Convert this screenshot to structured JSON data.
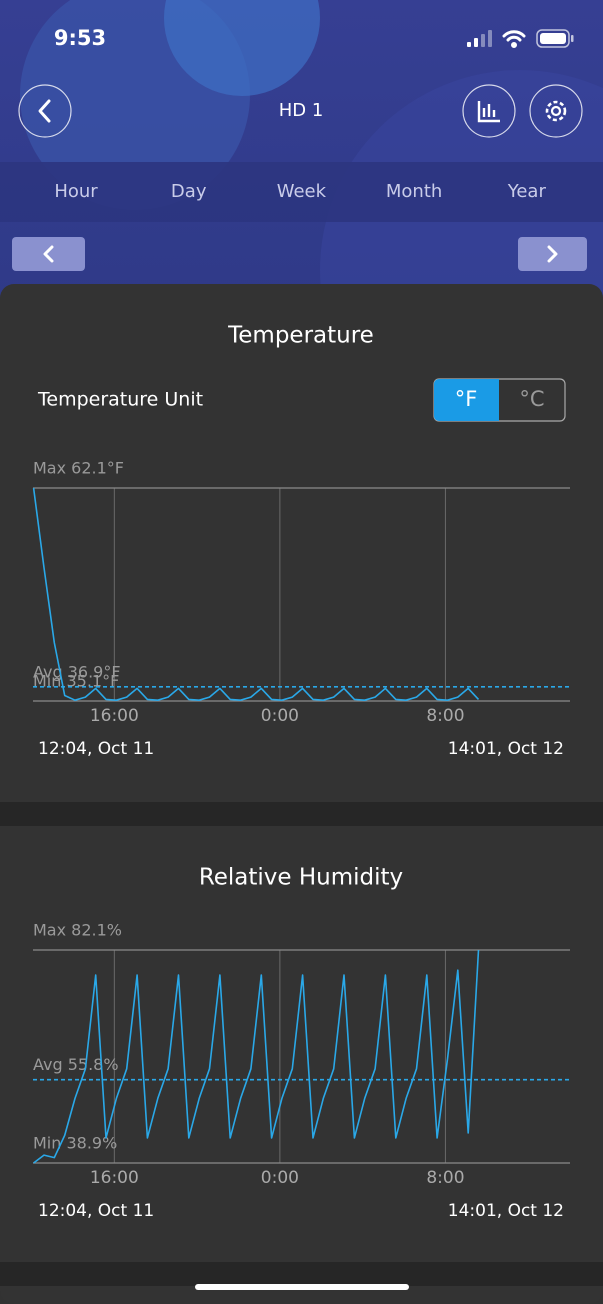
{
  "status_bar": {
    "time": "9:53"
  },
  "header": {
    "title": "HD 1"
  },
  "tabs": [
    "Hour",
    "Day",
    "Week",
    "Month",
    "Year"
  ],
  "unit_selector": {
    "label": "Temperature Unit",
    "options": [
      "°F",
      "°C"
    ],
    "selected": 0
  },
  "chart_data": [
    {
      "type": "line",
      "title": "Temperature",
      "color": "#2aa8e8",
      "xlim": [
        12.07,
        38.02
      ],
      "xticks": [
        {
          "value": 16,
          "label": "16:00"
        },
        {
          "value": 24,
          "label": "0:00"
        },
        {
          "value": 32,
          "label": "8:00"
        }
      ],
      "ylim": [
        35.1,
        62.1
      ],
      "yticks": [
        {
          "value": 35.1,
          "label": "Min 35.1°F"
        },
        {
          "value": 62.1,
          "label": "Max 62.1°F"
        }
      ],
      "avg_line": {
        "value": 36.9,
        "label": "Avg 36.9°F"
      },
      "start_label": "12:04,  Oct 11",
      "end_label": "14:01,  Oct 12",
      "x": [
        12.1,
        12.6,
        13.1,
        13.6,
        14.1,
        14.6,
        15.1,
        15.6,
        16.1,
        16.6,
        17.1,
        17.6,
        18.1,
        18.6,
        19.1,
        19.6,
        20.1,
        20.6,
        21.1,
        21.6,
        22.1,
        22.6,
        23.1,
        23.6,
        24.1,
        24.6,
        25.1,
        25.6,
        26.1,
        26.6,
        27.1,
        27.6,
        28.1,
        28.6,
        29.1,
        29.6,
        30.1,
        30.6,
        31.1,
        31.6,
        32.1,
        32.6,
        33.1,
        33.6
      ],
      "values": [
        62.1,
        52.0,
        42.5,
        35.8,
        35.2,
        35.6,
        36.7,
        35.3,
        35.2,
        35.6,
        36.7,
        35.3,
        35.2,
        35.6,
        36.7,
        35.3,
        35.2,
        35.6,
        36.7,
        35.3,
        35.2,
        35.6,
        36.7,
        35.3,
        35.2,
        35.6,
        36.7,
        35.3,
        35.2,
        35.6,
        36.7,
        35.3,
        35.2,
        35.6,
        36.7,
        35.3,
        35.2,
        35.6,
        36.7,
        35.3,
        35.2,
        35.6,
        36.7,
        35.3
      ]
    },
    {
      "type": "line",
      "title": "Relative Humidity",
      "color": "#2aa8e8",
      "xlim": [
        12.07,
        38.02
      ],
      "xticks": [
        {
          "value": 16,
          "label": "16:00"
        },
        {
          "value": 24,
          "label": "0:00"
        },
        {
          "value": 32,
          "label": "8:00"
        }
      ],
      "ylim": [
        38.9,
        82.1
      ],
      "yticks": [
        {
          "value": 38.9,
          "label": "Min 38.9%"
        },
        {
          "value": 82.1,
          "label": "Max 82.1%"
        }
      ],
      "avg_line": {
        "value": 55.8,
        "label": "Avg 55.8%"
      },
      "start_label": "12:04,  Oct 11",
      "end_label": "14:01,  Oct 12",
      "x": [
        12.1,
        12.6,
        13.1,
        13.6,
        14.1,
        14.6,
        15.1,
        15.6,
        16.1,
        16.6,
        17.1,
        17.6,
        18.1,
        18.6,
        19.1,
        19.6,
        20.1,
        20.6,
        21.1,
        21.6,
        22.1,
        22.6,
        23.1,
        23.6,
        24.1,
        24.6,
        25.1,
        25.6,
        26.1,
        26.6,
        27.1,
        27.6,
        28.1,
        28.6,
        29.1,
        29.6,
        30.1,
        30.6,
        31.1,
        31.6,
        32.1,
        32.6,
        33.1,
        33.6
      ],
      "values": [
        38.9,
        40.5,
        40.0,
        44.5,
        52.0,
        58.0,
        77.0,
        44.0,
        52.0,
        58.0,
        77.0,
        44.0,
        52.0,
        58.0,
        77.0,
        44.0,
        52.0,
        58.0,
        77.0,
        44.0,
        52.0,
        58.0,
        77.0,
        44.0,
        52.0,
        58.0,
        77.0,
        44.0,
        52.0,
        58.0,
        77.0,
        44.0,
        52.0,
        58.0,
        77.0,
        44.0,
        52.0,
        58.0,
        77.0,
        44.0,
        60.0,
        78.0,
        45.0,
        82.1
      ]
    }
  ]
}
